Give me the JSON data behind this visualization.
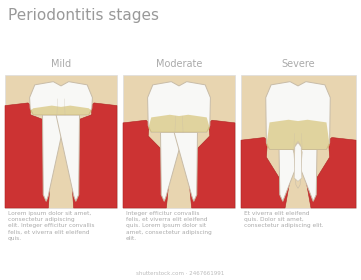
{
  "title": "Periodontitis stages",
  "title_color": "#999999",
  "title_fontsize": 11,
  "bg_color": "#ffffff",
  "stages": [
    "Mild",
    "Moderate",
    "Severe"
  ],
  "stage_color": "#aaaaaa",
  "stage_fontsize": 7,
  "descriptions": [
    "Lorem ipsum dolor sit amet,\nconsectetur adipiscing\nelit. Integer efficitur convallis\nfelis, et viverra elit eleifend\nquis.",
    "Integer efficitur convallis\nfelis, et viverra elit eleifend\nquis. Lorem ipsum dolor sit\namet, consectetur adipiscing\nelit.",
    "Et viverra elit eleifend\nquis. Dolor sit amet,\nconsectetur adipiscing elit."
  ],
  "desc_fontsize": 4.2,
  "desc_color": "#aaaaaa",
  "bone_color": "#e8d5b0",
  "gum_inflamed_color": "#cc3333",
  "gum_edge_color": "#b02222",
  "tooth_white": "#f8f8f6",
  "tooth_edge": "#c8bca8",
  "plaque_color": "#d4c070",
  "panel_edge": "#dddddd",
  "watermark_color": "#bbbbbb",
  "watermark_fontsize": 4
}
